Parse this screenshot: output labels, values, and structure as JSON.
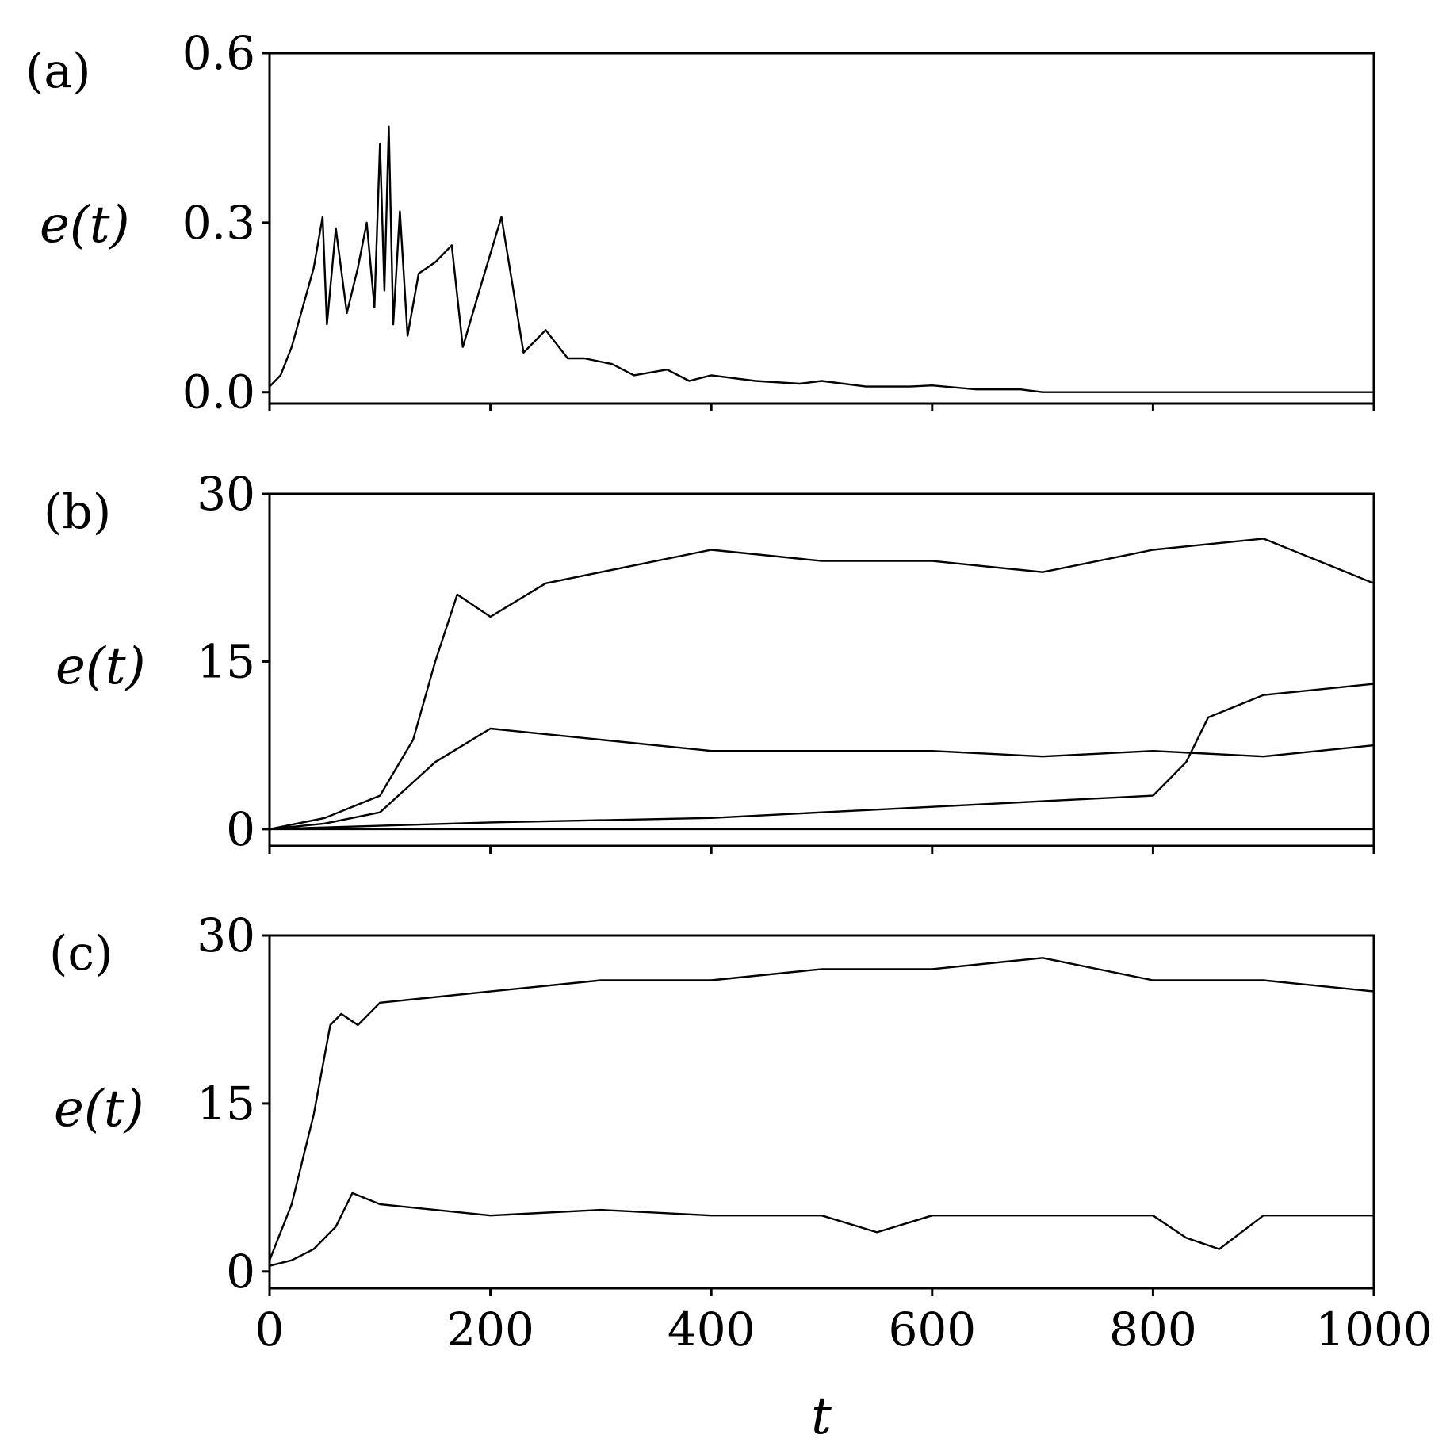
{
  "chart_data": [
    {
      "type": "line",
      "panel_label": "(a)",
      "xlabel": "",
      "ylabel": "e(t)",
      "xlim": [
        0,
        1000
      ],
      "ylim": [
        -0.02,
        0.6
      ],
      "yticks": [
        {
          "value": 0.0,
          "label": "0.0"
        },
        {
          "value": 0.3,
          "label": "0.3"
        },
        {
          "value": 0.6,
          "label": "0.6"
        }
      ],
      "xticks": [
        0,
        200,
        400,
        600,
        800,
        1000
      ],
      "show_xtick_labels": false,
      "grid": false,
      "color": "#000000",
      "series": [
        {
          "x": [
            0,
            10,
            20,
            30,
            40,
            48,
            52,
            60,
            70,
            80,
            88,
            95,
            100,
            104,
            108,
            112,
            118,
            125,
            135,
            150,
            165,
            175,
            190,
            210,
            230,
            250,
            270,
            285,
            310,
            330,
            360,
            380,
            400,
            440,
            480,
            500,
            540,
            580,
            600,
            640,
            680,
            700,
            800,
            1000
          ],
          "y": [
            0.01,
            0.03,
            0.08,
            0.15,
            0.22,
            0.31,
            0.12,
            0.29,
            0.14,
            0.22,
            0.3,
            0.15,
            0.44,
            0.18,
            0.47,
            0.12,
            0.32,
            0.1,
            0.21,
            0.23,
            0.26,
            0.08,
            0.18,
            0.31,
            0.07,
            0.11,
            0.06,
            0.06,
            0.05,
            0.03,
            0.04,
            0.02,
            0.03,
            0.02,
            0.015,
            0.02,
            0.01,
            0.01,
            0.012,
            0.005,
            0.005,
            0.0,
            0.0,
            0.0
          ]
        }
      ]
    },
    {
      "type": "line",
      "panel_label": "(b)",
      "xlabel": "",
      "ylabel": "e(t)",
      "xlim": [
        0,
        1000
      ],
      "ylim": [
        -1.5,
        30
      ],
      "yticks": [
        {
          "value": 0,
          "label": "0"
        },
        {
          "value": 15,
          "label": "15"
        },
        {
          "value": 30,
          "label": "30"
        }
      ],
      "xticks": [
        0,
        200,
        400,
        600,
        800,
        1000
      ],
      "show_xtick_labels": false,
      "grid": false,
      "color": "#000000",
      "series": [
        {
          "x": [
            0,
            50,
            100,
            130,
            150,
            170,
            200,
            250,
            300,
            400,
            500,
            600,
            700,
            800,
            900,
            1000
          ],
          "y": [
            0,
            1,
            3,
            8,
            15,
            21,
            19,
            22,
            23,
            25,
            24,
            24,
            23,
            25,
            26,
            22
          ]
        },
        {
          "x": [
            0,
            50,
            100,
            150,
            200,
            300,
            400,
            500,
            600,
            700,
            800,
            900,
            1000
          ],
          "y": [
            0,
            0.5,
            1.5,
            6,
            9,
            8,
            7,
            7,
            7,
            6.5,
            7,
            6.5,
            7.5
          ]
        },
        {
          "x": [
            0,
            100,
            200,
            300,
            400,
            500,
            600,
            700,
            760,
            800,
            830,
            850,
            900,
            1000
          ],
          "y": [
            0,
            0.3,
            0.6,
            0.8,
            1,
            1.5,
            2,
            2.5,
            2.8,
            3,
            6,
            10,
            12,
            13
          ]
        },
        {
          "x": [
            0,
            1000
          ],
          "y": [
            0,
            0
          ]
        }
      ]
    },
    {
      "type": "line",
      "panel_label": "(c)",
      "xlabel": "t",
      "ylabel": "e(t)",
      "xlim": [
        0,
        1000
      ],
      "ylim": [
        -1.5,
        30
      ],
      "yticks": [
        {
          "value": 0,
          "label": "0"
        },
        {
          "value": 15,
          "label": "15"
        },
        {
          "value": 30,
          "label": "30"
        }
      ],
      "xticks": [
        0,
        200,
        400,
        600,
        800,
        1000
      ],
      "show_xtick_labels": true,
      "grid": false,
      "color": "#000000",
      "series": [
        {
          "x": [
            0,
            20,
            40,
            55,
            65,
            80,
            100,
            200,
            300,
            400,
            500,
            600,
            700,
            800,
            900,
            1000
          ],
          "y": [
            1,
            6,
            14,
            22,
            23,
            22,
            24,
            25,
            26,
            26,
            27,
            27,
            28,
            26,
            26,
            25
          ]
        },
        {
          "x": [
            0,
            20,
            40,
            60,
            75,
            100,
            200,
            300,
            400,
            500,
            550,
            600,
            700,
            800,
            830,
            860,
            900,
            1000
          ],
          "y": [
            0.5,
            1,
            2,
            4,
            7,
            6,
            5,
            5.5,
            5,
            5,
            3.5,
            5,
            5,
            5,
            3,
            2,
            5,
            5
          ]
        }
      ]
    }
  ]
}
